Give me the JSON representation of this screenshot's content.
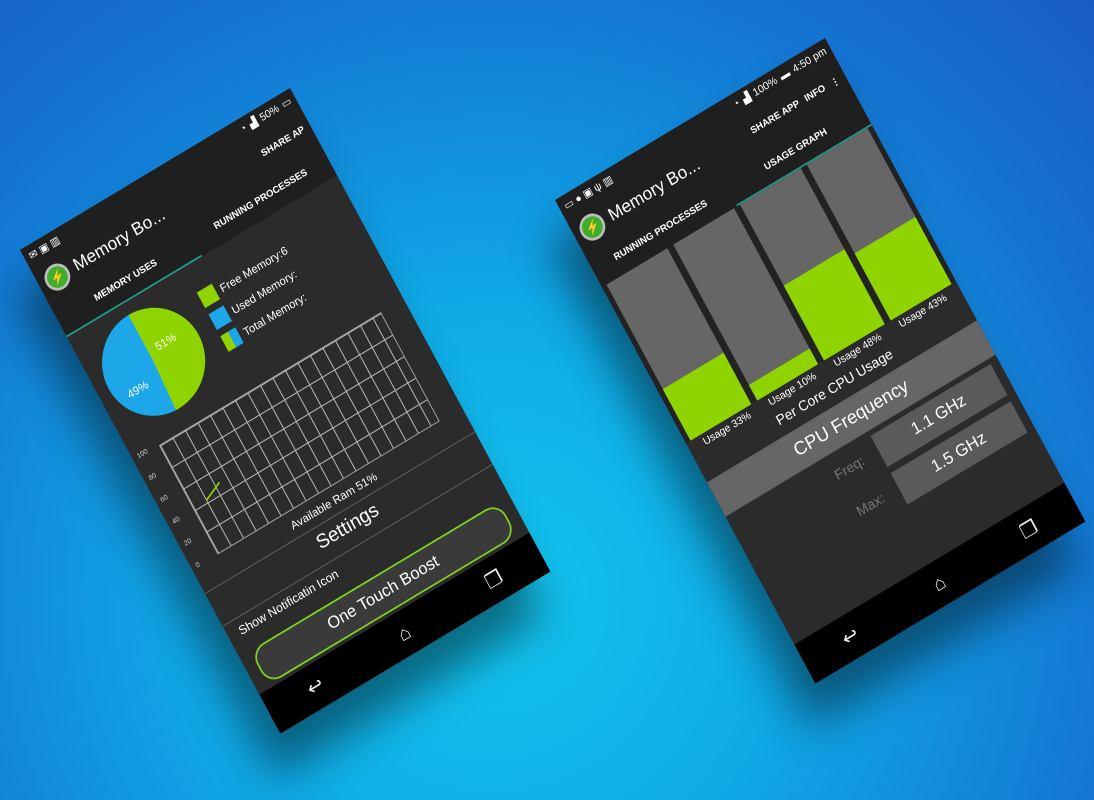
{
  "left": {
    "status": {
      "battery": "50%"
    },
    "app_title": "Memory Bo...",
    "action": "SHARE AP",
    "tabs": [
      "MEMORY USES",
      "RUNNING PROCESSES"
    ],
    "pie": {
      "used": "49%",
      "free": "51%",
      "colors": {
        "free": "#8fd400",
        "used": "#1ea7e8"
      }
    },
    "legend": [
      "Free Memory:6",
      "Used Memory:",
      "Total Memory:"
    ],
    "graph_y": [
      "100",
      "80",
      "60",
      "40",
      "20",
      "0"
    ],
    "available": "Available Ram 51%",
    "settings": "Settings",
    "notif": "Show Notificatin Icon",
    "boost": "One Touch Boost"
  },
  "right": {
    "status": {
      "battery": "100%",
      "time": "4:50 pm"
    },
    "app_title": "Memory Bo...",
    "actions": [
      "SHARE APP",
      "INFO"
    ],
    "tabs": [
      "RUNNING PROCESSES",
      "USAGE GRAPH"
    ],
    "cores": [
      {
        "label": "Usage 33%",
        "value": 33
      },
      {
        "label": "Usage 10%",
        "value": 10
      },
      {
        "label": "Usage 48%",
        "value": 48
      },
      {
        "label": "Usage 43%",
        "value": 43
      }
    ],
    "per_core": "Per Core CPU Usage",
    "cpu_freq": "CPU Frequency",
    "freq_label": "Freq:",
    "freq": "1.1 GHz",
    "max_label": "Max:",
    "max": "1.5 GHz"
  },
  "nav": {
    "back": "↩",
    "home": "⌂",
    "recent": "❐"
  }
}
